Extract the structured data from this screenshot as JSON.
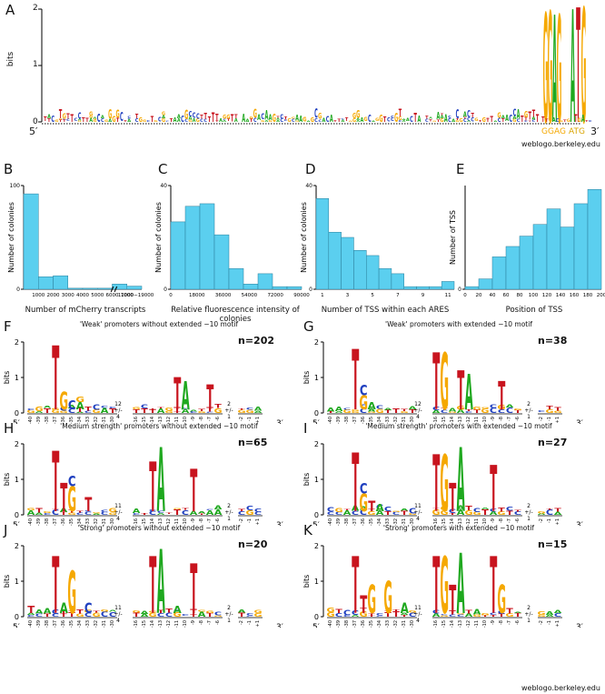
{
  "panelA": {
    "letter": "A",
    "ylabel": "bits",
    "yticks": [
      "0",
      "1",
      "2"
    ],
    "five": "5′",
    "three": "3′",
    "seq_left": "GGAG",
    "seq_right": "ATG",
    "credit": "weblogo.berkeley.edu"
  },
  "chart_data": [
    {
      "type": "bar",
      "panel": "B",
      "xlabel": "Number of mCherry transcripts",
      "ylabel": "Number of colonies",
      "ylim": [
        0,
        100
      ],
      "yticks": [
        "0",
        "100"
      ],
      "xticks": [
        "1000",
        "2000",
        "3000",
        "4000",
        "5000",
        "6000",
        "7000",
        "11000−19000"
      ],
      "categories": [
        "0-1000",
        "1000-2000",
        "2000-3000",
        "3000-4000",
        "4000-5000",
        "5000-6000",
        "6000-7000",
        "11000-19000"
      ],
      "values": [
        92,
        12,
        13,
        1,
        1,
        1,
        5,
        3
      ]
    },
    {
      "type": "bar",
      "panel": "C",
      "xlabel": "Relative fluorescence intensity of colonies",
      "ylabel": "Number of colonies",
      "ylim": [
        0,
        40
      ],
      "yticks": [
        "0",
        "40"
      ],
      "xticks": [
        "0",
        "18000",
        "36000",
        "54000",
        "72000",
        "90000"
      ],
      "categories": [
        "0-9000",
        "9000-18000",
        "18000-27000",
        "27000-36000",
        "36000-45000",
        "45000-54000",
        "54000-63000",
        "63000-72000",
        "81000-90000"
      ],
      "values": [
        26,
        32,
        33,
        21,
        8,
        2,
        6,
        1,
        1
      ]
    },
    {
      "type": "bar",
      "panel": "D",
      "xlabel": "Number of TSS within each ARES",
      "ylabel": "Number of colonies",
      "ylim": [
        0,
        40
      ],
      "yticks": [
        "0",
        "40"
      ],
      "xticks": [
        "1",
        "3",
        "5",
        "7",
        "9",
        "11"
      ],
      "categories": [
        "1",
        "2",
        "3",
        "4",
        "5",
        "6",
        "7",
        "8",
        "9",
        "10",
        "11"
      ],
      "values": [
        35,
        22,
        20,
        15,
        13,
        8,
        6,
        1,
        1,
        1,
        3
      ]
    },
    {
      "type": "bar",
      "panel": "E",
      "xlabel": "Position of TSS",
      "ylabel": "Number of TSS",
      "ylim": [
        0,
        80
      ],
      "yticks": [
        "0"
      ],
      "xticks": [
        "0",
        "20",
        "40",
        "60",
        "80",
        "100",
        "120",
        "140",
        "160",
        "180",
        "200"
      ],
      "categories": [
        "0-20",
        "20-40",
        "40-60",
        "60-80",
        "80-100",
        "100-120",
        "120-140",
        "140-160",
        "160-180",
        "180-200"
      ],
      "values": [
        2,
        8,
        25,
        33,
        41,
        50,
        62,
        48,
        66,
        77
      ]
    }
  ],
  "histLetters": {
    "B": "B",
    "C": "C",
    "D": "D",
    "E": "E"
  },
  "logos": [
    {
      "letter": "F",
      "title": "'Weak' promoters without extended −10 motif",
      "n": "n=202",
      "gap1": "12\n+/-\n4"
    },
    {
      "letter": "G",
      "title": "'Weak' promoters with extended −10 motif",
      "n": "n=38",
      "gap1": "12\n+/-\n4"
    },
    {
      "letter": "H",
      "title": "'Medium strength' promoters without extended −10 motif",
      "n": "n=65",
      "gap1": "11\n+/-\n4"
    },
    {
      "letter": "I",
      "title": "'Medium strength' promoters with extended −10 motif",
      "n": "n=27",
      "gap1": "11\n+/-\n4"
    },
    {
      "letter": "J",
      "title": "'Strong' promoters without extended −10 motif",
      "n": "n=20",
      "gap1": "11\n+/-\n4"
    },
    {
      "letter": "K",
      "title": "'Strong' promoters with extended −10 motif",
      "n": "n=15",
      "gap1": "11\n+/-\n4"
    }
  ],
  "logoAxis": {
    "ylabel": "bits",
    "y0": "0",
    "y1": "1",
    "y2": "2",
    "five": "5′",
    "three": "3′",
    "gap2": "2\n+/-\n1"
  },
  "colors": {
    "bar": "#5bcfef",
    "barEdge": "#2a7d99",
    "A": "#1fa81f",
    "C": "#1f3fbf",
    "G": "#f5a800",
    "T": "#c8141e"
  },
  "footer_credit": "weblogo.berkeley.edu"
}
